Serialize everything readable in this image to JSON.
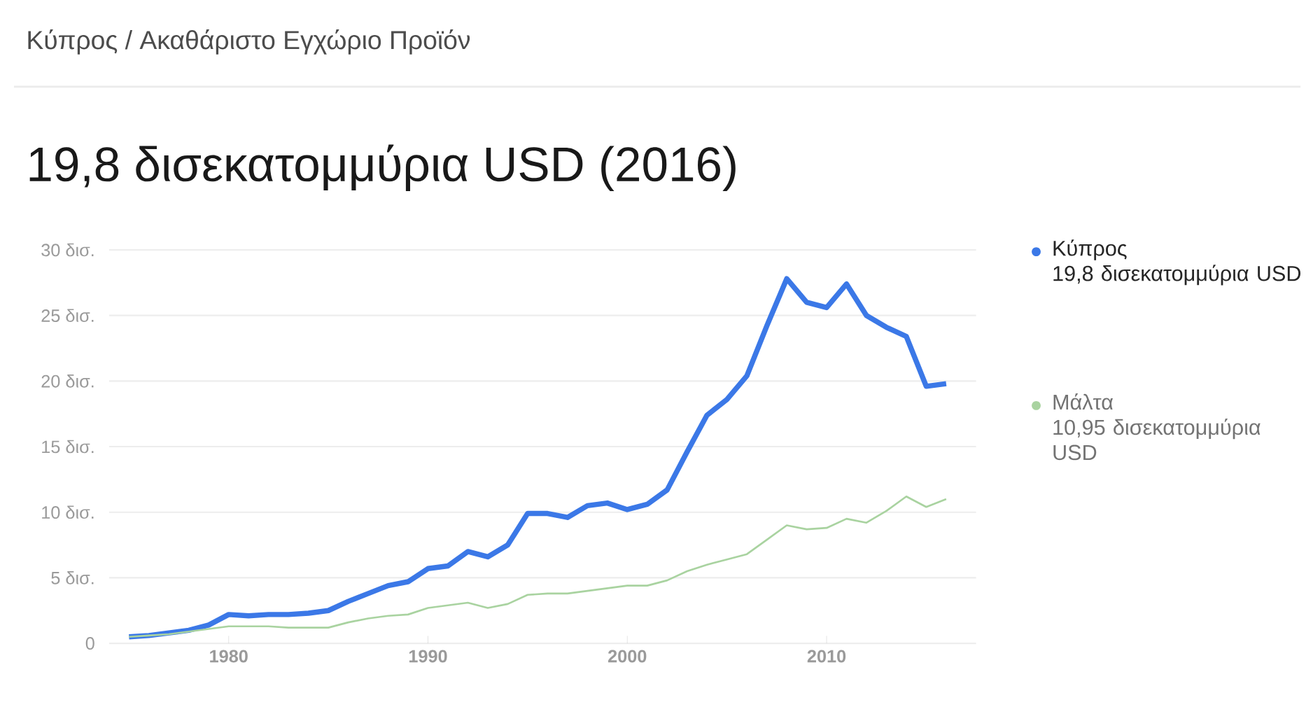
{
  "chart_data": {
    "type": "line",
    "title": "19,8 δισεκατομμύρια USD (2016)",
    "subtitle": "Κύπρος / Ακαθάριστο Εγχώριο Προϊόν",
    "x": [
      1975,
      1976,
      1977,
      1978,
      1979,
      1980,
      1981,
      1982,
      1983,
      1984,
      1985,
      1986,
      1987,
      1988,
      1989,
      1990,
      1991,
      1992,
      1993,
      1994,
      1995,
      1996,
      1997,
      1998,
      1999,
      2000,
      2001,
      2002,
      2003,
      2004,
      2005,
      2006,
      2007,
      2008,
      2009,
      2010,
      2011,
      2012,
      2013,
      2014,
      2015,
      2016
    ],
    "series": [
      {
        "name": "Κύπρος",
        "color": "#3b78e7",
        "values": [
          0.5,
          0.6,
          0.8,
          1.0,
          1.4,
          2.2,
          2.1,
          2.2,
          2.2,
          2.3,
          2.5,
          3.2,
          3.8,
          4.4,
          4.7,
          5.7,
          5.9,
          7.0,
          6.6,
          7.5,
          9.9,
          9.9,
          9.6,
          10.5,
          10.7,
          10.2,
          10.6,
          11.7,
          14.6,
          17.4,
          18.6,
          20.4,
          24.2,
          27.8,
          26.0,
          25.6,
          27.4,
          25.0,
          24.1,
          23.4,
          19.6,
          19.8
        ]
      },
      {
        "name": "Μάλτα",
        "color": "#a9d3a0",
        "values": [
          0.5,
          0.6,
          0.7,
          0.9,
          1.1,
          1.3,
          1.3,
          1.3,
          1.2,
          1.2,
          1.2,
          1.6,
          1.9,
          2.1,
          2.2,
          2.7,
          2.9,
          3.1,
          2.7,
          3.0,
          3.7,
          3.8,
          3.8,
          4.0,
          4.2,
          4.4,
          4.4,
          4.8,
          5.5,
          6.0,
          6.4,
          6.8,
          7.9,
          9.0,
          8.7,
          8.8,
          9.5,
          9.2,
          10.1,
          11.2,
          10.4,
          11.0
        ]
      }
    ],
    "annotations": [
      "19,8 δισεκατομμύρια USD",
      "10,95 δισεκατομμύρια USD"
    ],
    "xlim": [
      1974,
      2017.5
    ],
    "ylim": [
      0,
      30
    ],
    "xticks": [
      1980,
      1990,
      2000,
      2010
    ],
    "yticks": [
      {
        "value": 0,
        "label": "0"
      },
      {
        "value": 5,
        "label": "5 δισ."
      },
      {
        "value": 10,
        "label": "10 δισ."
      },
      {
        "value": 15,
        "label": "15 δισ."
      },
      {
        "value": 20,
        "label": "20 δισ."
      },
      {
        "value": 25,
        "label": "25 δισ."
      },
      {
        "value": 30,
        "label": "30 δισ."
      }
    ],
    "grid": "y",
    "legend": "right",
    "line_style": "solid",
    "marker": "none"
  }
}
